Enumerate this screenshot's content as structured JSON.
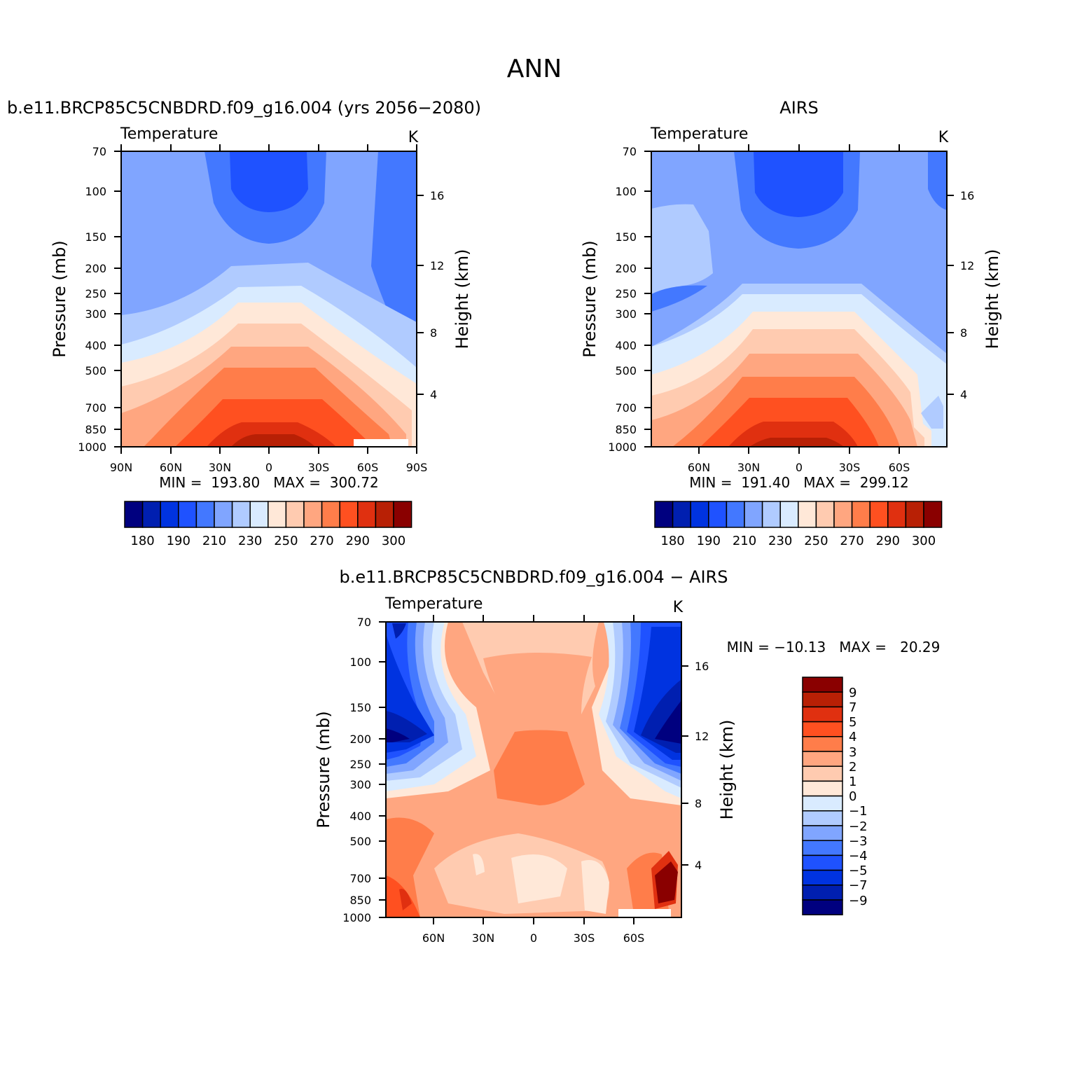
{
  "figure_title": "ANN",
  "chart_data": [
    {
      "type": "contour",
      "title": "b.e11.BRCP85C5CNBDRD.f09_g16.004 (yrs 2056−2080)",
      "variable": "Temperature",
      "units": "K",
      "ylabel": "Pressure (mb)",
      "y2label": "Height (km)",
      "pressure_ticks": [
        "70",
        "100",
        "150",
        "200",
        "250",
        "300",
        "400",
        "500",
        "700",
        "850",
        "1000"
      ],
      "height_ticks": [
        "16",
        "12",
        "8",
        "4"
      ],
      "lat_ticks": [
        "90N",
        "60N",
        "30N",
        "0",
        "30S",
        "60S",
        "90S"
      ],
      "stats": "MIN =  193.80   MAX =  300.72",
      "min": 193.8,
      "max": 300.72,
      "colorbar_labels": [
        "180",
        "190",
        "210",
        "230",
        "250",
        "270",
        "290",
        "300"
      ],
      "colorbar_colors": [
        "#00007f",
        "#001fb0",
        "#0033e0",
        "#1f52ff",
        "#4378ff",
        "#80a5ff",
        "#b0cbff",
        "#d9ebff",
        "#ffe8d8",
        "#ffcbb0",
        "#ffa680",
        "#ff7d4a",
        "#ff5020",
        "#e03010",
        "#b82005",
        "#8a0000"
      ]
    },
    {
      "type": "contour",
      "title": "AIRS",
      "variable": "Temperature",
      "units": "K",
      "ylabel": "Pressure (mb)",
      "y2label": "Height (km)",
      "pressure_ticks": [
        "70",
        "100",
        "150",
        "200",
        "250",
        "300",
        "400",
        "500",
        "700",
        "850",
        "1000"
      ],
      "height_ticks": [
        "16",
        "12",
        "8",
        "4"
      ],
      "lat_ticks": [
        "60N",
        "30N",
        "0",
        "30S",
        "60S"
      ],
      "stats": "MIN =  191.40   MAX =  299.12",
      "min": 191.4,
      "max": 299.12,
      "colorbar_labels": [
        "180",
        "190",
        "210",
        "230",
        "250",
        "270",
        "290",
        "300"
      ],
      "colorbar_colors": [
        "#00007f",
        "#001fb0",
        "#0033e0",
        "#1f52ff",
        "#4378ff",
        "#80a5ff",
        "#b0cbff",
        "#d9ebff",
        "#ffe8d8",
        "#ffcbb0",
        "#ffa680",
        "#ff7d4a",
        "#ff5020",
        "#e03010",
        "#b82005",
        "#8a0000"
      ]
    },
    {
      "type": "contour",
      "title": "b.e11.BRCP85C5CNBDRD.f09_g16.004 − AIRS",
      "variable": "Temperature",
      "units": "K",
      "ylabel": "Pressure (mb)",
      "y2label": "Height (km)",
      "pressure_ticks": [
        "70",
        "100",
        "150",
        "200",
        "250",
        "300",
        "400",
        "500",
        "700",
        "850",
        "1000"
      ],
      "height_ticks": [
        "16",
        "12",
        "8",
        "4"
      ],
      "lat_ticks": [
        "60N",
        "30N",
        "0",
        "30S",
        "60S"
      ],
      "stats": "MIN = −10.13   MAX =   20.29",
      "min": -10.13,
      "max": 20.29,
      "colorbar_labels": [
        "9",
        "7",
        "5",
        "4",
        "3",
        "2",
        "1",
        "0",
        "−1",
        "−2",
        "−3",
        "−4",
        "−5",
        "−7",
        "−9"
      ],
      "colorbar_colors": [
        "#8a0000",
        "#b82005",
        "#e03010",
        "#ff5020",
        "#ff7d4a",
        "#ffa680",
        "#ffcbb0",
        "#ffe8d8",
        "#d9ebff",
        "#b0cbff",
        "#80a5ff",
        "#4378ff",
        "#1f52ff",
        "#0033e0",
        "#001fb0",
        "#00007f"
      ]
    }
  ]
}
